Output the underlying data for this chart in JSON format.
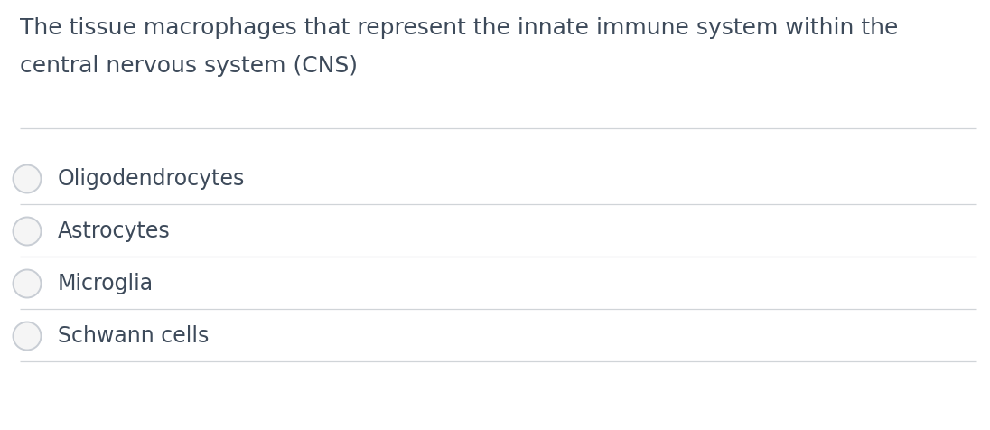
{
  "question_line1": "The tissue macrophages that represent the innate immune system within the",
  "question_line2": "central nervous system (CNS)",
  "options": [
    "Oligodendrocytes",
    "Astrocytes",
    "Microglia",
    "Schwann cells"
  ],
  "bg_color": "#ffffff",
  "text_color": "#3d4a5a",
  "question_fontsize": 18,
  "option_fontsize": 17,
  "circle_edge_color": "#c8cdd4",
  "circle_fill_color": "#f5f5f5",
  "line_color": "#d0d4d8",
  "fig_width": 10.96,
  "fig_height": 4.76,
  "dpi": 100
}
